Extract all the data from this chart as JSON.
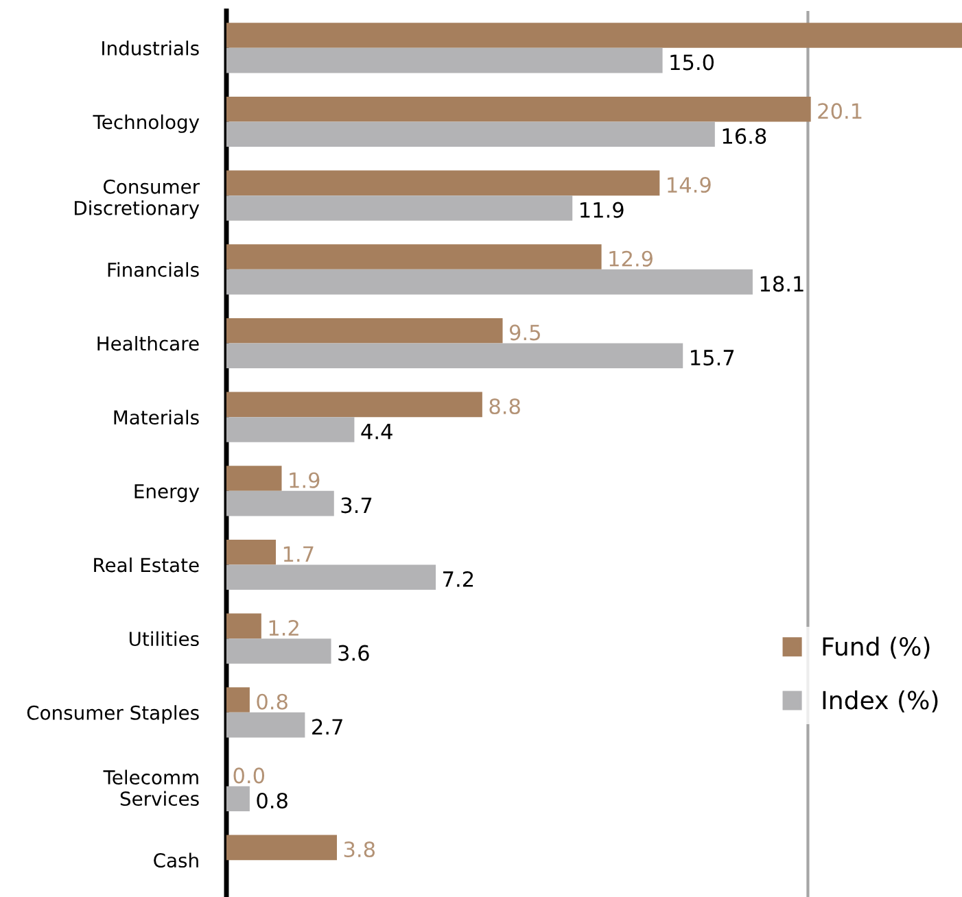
{
  "chart_data": {
    "type": "bar",
    "orientation": "horizontal",
    "categories": [
      "Industrials",
      "Technology",
      "Consumer\nDiscretionary",
      "Financials",
      "Healthcare",
      "Materials",
      "Energy",
      "Real Estate",
      "Utilities",
      "Consumer Staples",
      "Telecomm\nServices",
      "Cash"
    ],
    "series": [
      {
        "name": "Fund (%)",
        "color": "#a67f5d",
        "values": [
          25.3,
          20.1,
          14.9,
          12.9,
          9.5,
          8.8,
          1.9,
          1.7,
          1.2,
          0.8,
          0.0,
          3.8
        ],
        "value_labels": [
          null,
          "20.1",
          "14.9",
          "12.9",
          "9.5",
          "8.8",
          "1.9",
          "1.7",
          "1.2",
          "0.8",
          "0.0",
          "3.8"
        ]
      },
      {
        "name": "Index (%)",
        "color": "#b3b3b5",
        "values": [
          15.0,
          16.8,
          11.9,
          18.1,
          15.7,
          4.4,
          3.7,
          7.2,
          3.6,
          2.7,
          0.8,
          null
        ],
        "value_labels": [
          "15.0",
          "16.8",
          "11.9",
          "18.1",
          "15.7",
          "4.4",
          "3.7",
          "7.2",
          "3.6",
          "2.7",
          "0.8",
          null
        ]
      }
    ],
    "xlim": [
      0,
      25.3
    ],
    "tick_labels": "y",
    "ref_lines": [
      {
        "axis": "x",
        "value": 20,
        "color": "#a6a6a6"
      }
    ],
    "legend": "right",
    "grid": false
  }
}
